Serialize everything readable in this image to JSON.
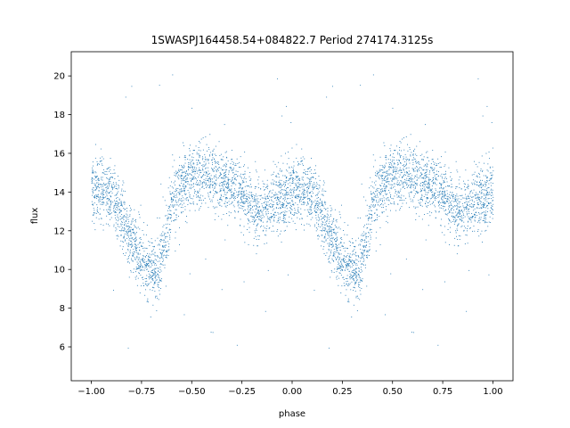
{
  "chart_data": {
    "type": "scatter",
    "title": "1SWASPJ164458.54+084822.7 Period 274174.3125s",
    "xlabel": "phase",
    "ylabel": "flux",
    "xlim": [
      -1.1,
      1.1
    ],
    "ylim": [
      4.25,
      21.25
    ],
    "xticks": [
      -1.0,
      -0.75,
      -0.5,
      -0.25,
      0.0,
      0.25,
      0.5,
      0.75,
      1.0
    ],
    "xtick_labels": [
      "−1.00",
      "−0.75",
      "−0.50",
      "−0.25",
      "0.00",
      "0.25",
      "0.50",
      "0.75",
      "1.00"
    ],
    "yticks": [
      6,
      8,
      10,
      12,
      14,
      16,
      18,
      20
    ],
    "ytick_labels": [
      "6",
      "8",
      "10",
      "12",
      "14",
      "16",
      "18",
      "20"
    ],
    "grid": false,
    "legend": "none",
    "point_color": "#1f77b4",
    "series": [
      {
        "phase_curve": {
          "phase": [
            0.0,
            0.05,
            0.1,
            0.15,
            0.2,
            0.25,
            0.28,
            0.3,
            0.32,
            0.34,
            0.37,
            0.4,
            0.45,
            0.5,
            0.55,
            0.6,
            0.65,
            0.7,
            0.75,
            0.8,
            0.85,
            0.9,
            0.95,
            1.0
          ],
          "flux": [
            14.0,
            14.2,
            14.0,
            12.8,
            11.5,
            10.5,
            10.0,
            10.0,
            10.0,
            10.3,
            11.5,
            13.5,
            14.3,
            14.6,
            14.8,
            14.8,
            14.6,
            14.4,
            13.8,
            13.0,
            13.0,
            13.5,
            13.8,
            14.0
          ],
          "scatter_width": 1.1
        },
        "notes": "Light curve plotted over two cycles (phase -1.0 to 1.0); primary minimum near phase 0.32 / -0.68 at flux ~10, maxima ~14-16, secondary dip ~13 near phase 0.85 / -0.15, sparse outliers between 5 and 20.5."
      }
    ]
  }
}
